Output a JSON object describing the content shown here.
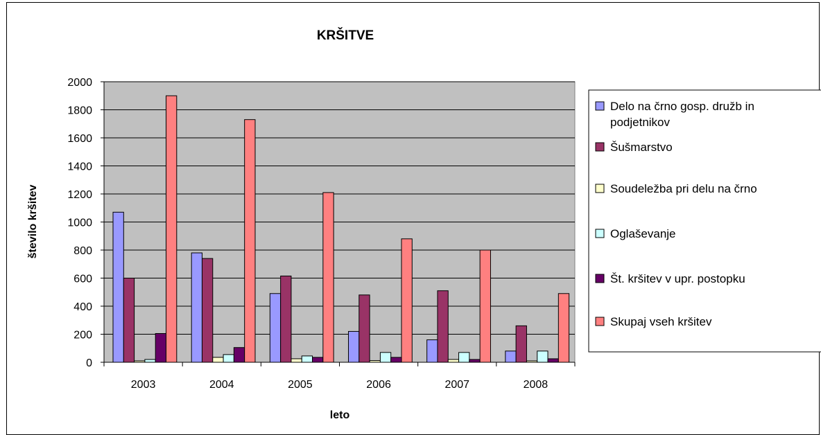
{
  "chart_data": {
    "type": "bar",
    "title": "KRŠITVE",
    "xlabel": "leto",
    "ylabel": "število kršitev",
    "categories": [
      "2003",
      "2004",
      "2005",
      "2006",
      "2007",
      "2008"
    ],
    "ylim": [
      0,
      2000
    ],
    "yticks": [
      0,
      200,
      400,
      600,
      800,
      1000,
      1200,
      1400,
      1600,
      1800,
      2000
    ],
    "grid": true,
    "legend_position": "right",
    "series": [
      {
        "name": "Delo na črno gosp. družb in podjetnikov",
        "legend_lines": [
          "Delo na črno gosp. družb in",
          "podjetnikov"
        ],
        "color": "#9999ff",
        "values": [
          1070,
          780,
          490,
          220,
          160,
          80
        ]
      },
      {
        "name": "Šušmarstvo",
        "legend_lines": [
          "Šušmarstvo"
        ],
        "color": "#993366",
        "values": [
          600,
          740,
          615,
          480,
          510,
          260
        ]
      },
      {
        "name": "Soudeležba pri delu na črno",
        "legend_lines": [
          "Soudeležba pri delu na črno"
        ],
        "color": "#ffffcc",
        "values": [
          10,
          35,
          25,
          12,
          20,
          10
        ]
      },
      {
        "name": "Oglaševanje",
        "legend_lines": [
          "Oglaševanje"
        ],
        "color": "#ccffff",
        "values": [
          20,
          55,
          45,
          70,
          70,
          80
        ]
      },
      {
        "name": "Št. kršitev v upr. postopku",
        "legend_lines": [
          "Št. kršitev v upr. postopku"
        ],
        "color": "#660066",
        "values": [
          205,
          105,
          35,
          35,
          20,
          25
        ]
      },
      {
        "name": "Skupaj vseh kršitev",
        "legend_lines": [
          "Skupaj vseh kršitev"
        ],
        "color": "#ff8080",
        "values": [
          1900,
          1730,
          1210,
          880,
          800,
          490
        ]
      }
    ]
  }
}
